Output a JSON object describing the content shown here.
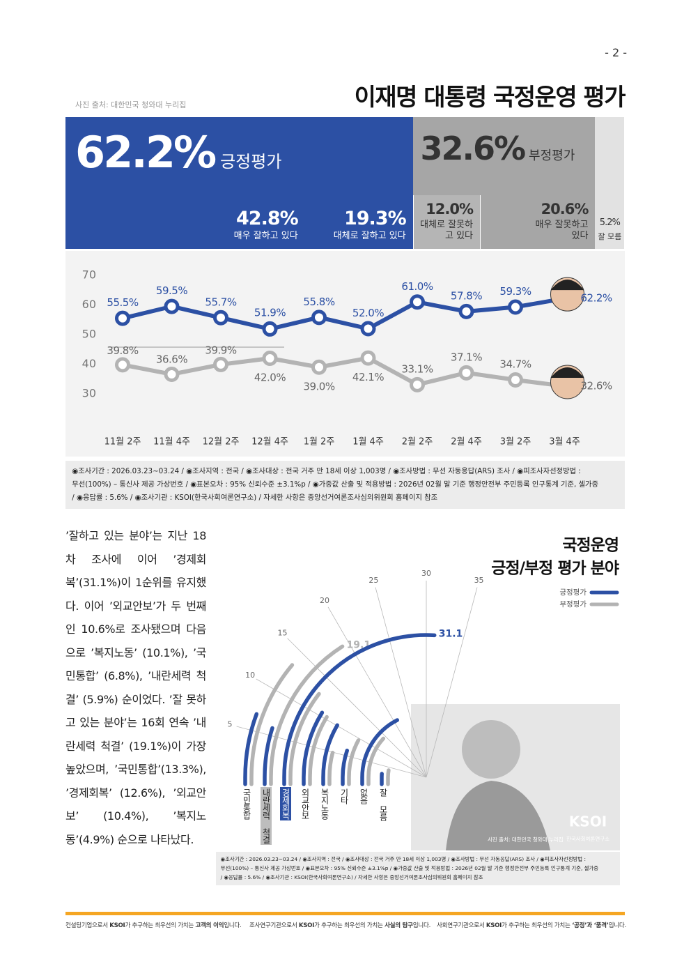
{
  "page_number": "- 2 -",
  "header": {
    "photo_credit": "사진 출처: 대한민국 청와대 누리집",
    "title": "이재명 대통령 국정운영 평가"
  },
  "summary": {
    "positive": {
      "label": "긍정평가",
      "value": 62.2,
      "value_label": "62.2%",
      "color": "#2c50a4"
    },
    "negative": {
      "label": "부정평가",
      "value": 32.6,
      "value_label": "32.6%",
      "color": "#a6a6a6"
    },
    "segments": [
      {
        "label": "매우 잘하고 있다",
        "value": 42.8,
        "value_label": "42.8%",
        "color": "#2c50a4"
      },
      {
        "label": "대체로 잘하고 있다",
        "value": 19.3,
        "value_label": "19.3%",
        "color": "#2c50a4"
      },
      {
        "label": "대체로 잘못하고 있다",
        "value": 12.0,
        "value_label": "12.0%",
        "color": "#b5b5b5"
      },
      {
        "label": "매우 잘못하고 있다",
        "value": 20.6,
        "value_label": "20.6%",
        "color": "#a6a6a6"
      },
      {
        "label": "잘 모름",
        "value": 5.2,
        "value_label": "5.2%",
        "color": "#e2e2e2"
      }
    ]
  },
  "chart_data": [
    {
      "type": "line",
      "categories": [
        "11월 2주",
        "11월 4주",
        "12월 2주",
        "12월 4주",
        "1월 2주",
        "1월 4주",
        "2월 2주",
        "2월 4주",
        "3월 2주",
        "3월 4주"
      ],
      "series": [
        {
          "color": "#2c50a4",
          "values": [
            55.5,
            59.5,
            55.7,
            51.9,
            55.8,
            52.0,
            61.0,
            57.8,
            59.3,
            62.2
          ],
          "value_labels": [
            "55.5%",
            "59.5%",
            "55.7%",
            "51.9%",
            "55.8%",
            "52.0%",
            "61.0%",
            "57.8%",
            "59.3%",
            "62.2%"
          ]
        },
        {
          "color": "#b3b3b3",
          "values": [
            39.8,
            36.6,
            39.9,
            42.0,
            39.0,
            42.1,
            33.1,
            37.1,
            34.7,
            32.6
          ],
          "value_labels": [
            "39.8%",
            "36.6%",
            "39.9%",
            "42.0%",
            "39.0%",
            "42.1%",
            "33.1%",
            "37.1%",
            "34.7%",
            "32.6%"
          ]
        }
      ],
      "ylim": [
        30,
        70
      ],
      "yticks": [
        30,
        40,
        50,
        60,
        70
      ],
      "grid": false
    },
    {
      "type": "radial_bar",
      "title_lines": [
        "국정운영",
        "긍정/부정 평가 분야"
      ],
      "categories": [
        "국민통합",
        "내란세력 척결",
        "경제회복",
        "외교안보",
        "복지노동",
        "기타",
        "없음",
        "잘 모름"
      ],
      "series": [
        {
          "name": "긍정평가",
          "color": "#2c50a4",
          "values": [
            6.8,
            5.9,
            31.1,
            10.6,
            10.1,
            6.2,
            21.0,
            1.5
          ],
          "value_labels": [
            null,
            null,
            "31.1",
            null,
            null,
            null,
            null,
            null
          ]
        },
        {
          "name": "부정평가",
          "color": "#b3b3b3",
          "values": [
            13.3,
            19.1,
            12.6,
            10.4,
            4.9,
            9.5,
            14.0,
            3.5
          ],
          "value_labels": [
            null,
            "19.1",
            null,
            null,
            null,
            null,
            null,
            null
          ]
        }
      ],
      "ylim": [
        0,
        60
      ],
      "yticks": [
        5,
        10,
        15,
        20,
        25,
        30,
        35
      ]
    }
  ],
  "note_lines": [
    "◉조사기간 : 2026.03.23~03.24 / ◉조사지역 : 전국 / ◉조사대상 : 전국 거주 만 18세 이상 1,003명 / ◉조사방법 : 무선 자동응답(ARS) 조사 / ◉피조사자선정방법 :",
    "무선(100%) – 통신사 제공 가상번호 / ◉표본오차 : 95% 신뢰수준 ±3.1%p / ◉가중값 산출 및 적용방법 : 2026년 02월 말 기준 행정안전부 주민등록 인구통계 기준, 셀가중",
    "/ ◉응답률 : 5.6% / ◉조사기관 : KSOI(한국사회여론연구소) / 자세한 사항은 중앙선거여론조사심의위원회 홈페이지 참조"
  ],
  "body_text": "’잘하고 있는 분야’는 지난 18차 조사에 이어 ’경제회복’(31.1%)이 1순위를 유지했다. 이어 ’외교안보’가 두 번째인 10.6%로 조사됐으며 다음으로 ’복지노동’ (10.1%), ’국민통합’ (6.8%), ’내란세력 척결’ (5.9%) 순이었다. ’잘 못하고 있는 분야’는 16회 연속 ’내란세력 척결’ (19.1%)이 가장 높았으며, ’국민통합’(13.3%), ’경제회복’ (12.6%), ’외교안보’ (10.4%), ’복지노동’(4.9%) 순으로 나타났다.",
  "radial_photo": {
    "logo": "KSOI",
    "logo_subtitle": "한국사회여론연구소",
    "credit": "사진 출처: 대한민국 청와대 누리집"
  },
  "footer": [
    {
      "lead": "컨설팅기업으로서 ",
      "brand": "KSOI",
      "middle": "가 추구하는 최우선의 가치는 ",
      "emphasis": "고객의 이익",
      "end": "입니다."
    },
    {
      "lead": "조사연구기관으로서 ",
      "brand": "KSOI",
      "middle": "가 추구하는 최우선의 가치는 ",
      "emphasis": "사실의 탐구",
      "end": "입니다."
    },
    {
      "lead": "사회연구기관으로서 ",
      "brand": "KSOI",
      "middle": "가 추구하는 최우선의 가치는 ",
      "emphasis": "‘공정’과 ‘품격’",
      "end": "입니다."
    }
  ]
}
